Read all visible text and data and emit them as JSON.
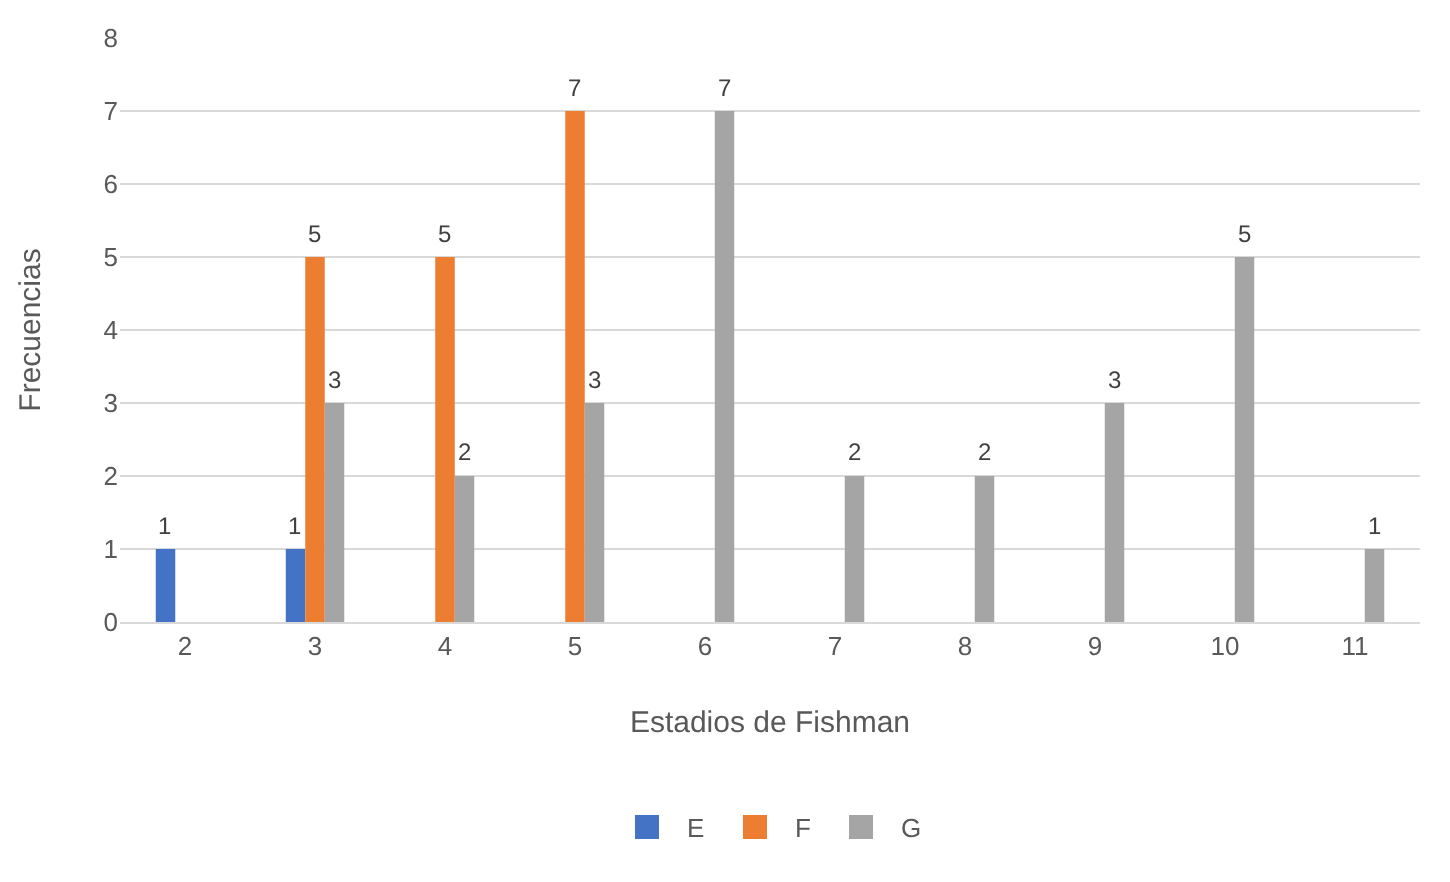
{
  "chart_data": {
    "type": "bar",
    "xlabel": "Estadios de Fishman",
    "ylabel": "Frecuencias",
    "categories": [
      "2",
      "3",
      "4",
      "5",
      "6",
      "7",
      "8",
      "9",
      "10",
      "11"
    ],
    "series": [
      {
        "name": "E",
        "color": "#4472c4",
        "values": [
          1,
          1,
          null,
          null,
          null,
          null,
          null,
          null,
          null,
          null
        ]
      },
      {
        "name": "F",
        "color": "#ed7d31",
        "values": [
          null,
          5,
          5,
          7,
          null,
          null,
          null,
          null,
          null,
          null
        ]
      },
      {
        "name": "G",
        "color": "#a5a5a5",
        "values": [
          null,
          3,
          2,
          3,
          7,
          2,
          2,
          3,
          5,
          1
        ]
      }
    ],
    "ylim": [
      0,
      8
    ],
    "yticks": [
      0,
      1,
      2,
      3,
      4,
      5,
      6,
      7,
      8
    ],
    "grid": "y",
    "legend": "bottom",
    "data_labels": true
  }
}
